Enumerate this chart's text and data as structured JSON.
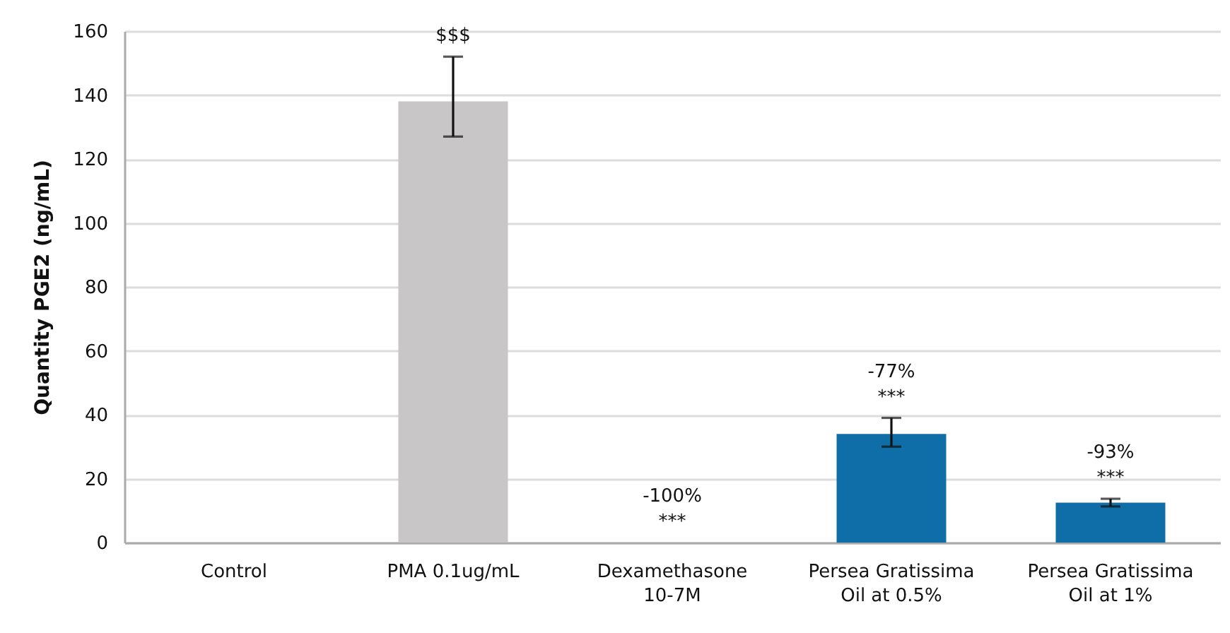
{
  "chart_data": {
    "type": "bar",
    "ylabel": "Quantity PGE2 (ng/mL)",
    "categories": [
      "Control",
      "PMA 0.1ug/mL",
      "Dexamethasone 10-7M",
      "Persea Gratissima Oil at 0.5%",
      "Persea Gratissima Oil at 1%"
    ],
    "values": [
      0,
      138,
      0,
      34,
      12.5
    ],
    "colors": [
      "#c8c6c7",
      "#c8c6c7",
      "#0f6ea8",
      "#0f6ea8",
      "#0f6ea8"
    ],
    "errors": [
      null,
      [
        127,
        152
      ],
      null,
      [
        30,
        39
      ],
      1.2
    ],
    "ylim": [
      0,
      160
    ],
    "yticks": [
      0,
      20,
      40,
      60,
      80,
      100,
      120,
      140,
      160
    ],
    "grid": "y",
    "annotations": [
      {
        "text": "$$$",
        "x": "PMA 0.1ug/mL",
        "y": 152
      },
      {
        "text": "-100%",
        "x": "Dexamethasone 10-7M",
        "y": 0
      },
      {
        "text": "***",
        "x": "Dexamethasone 10-7M",
        "y": 0
      },
      {
        "text": "-77%",
        "x": "Persea Gratissima Oil at 0.5%",
        "y": 39
      },
      {
        "text": "***",
        "x": "Persea Gratissima Oil at 0.5%",
        "y": 39
      },
      {
        "text": "-93%",
        "x": "Persea Gratissima Oil at 1%",
        "y": 13.7
      },
      {
        "text": "***",
        "x": "Persea Gratissima Oil at 1%",
        "y": 13.7
      }
    ]
  }
}
